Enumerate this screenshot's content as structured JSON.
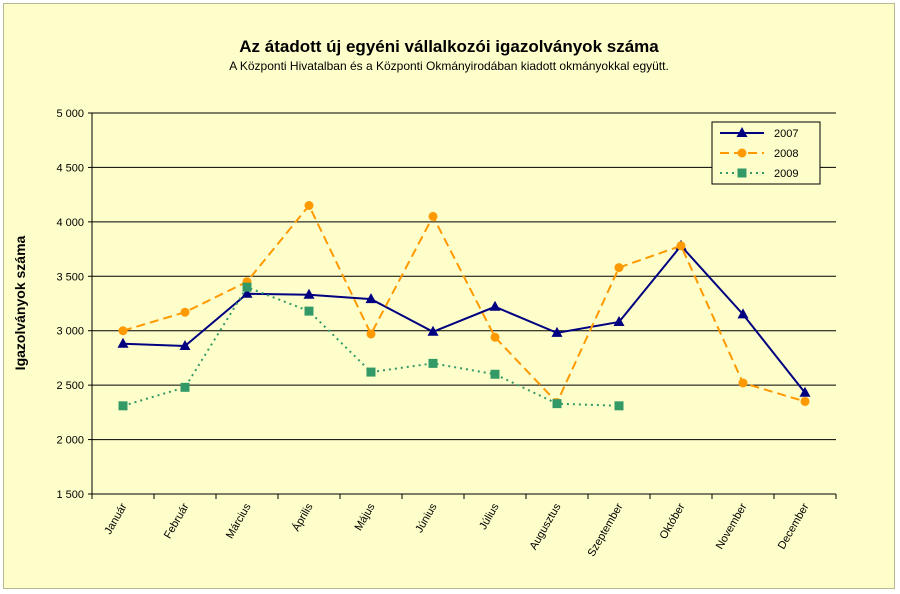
{
  "chart_data": {
    "type": "line",
    "title": "Az átadott új egyéni vállalkozói  igazolványok száma",
    "subtitle": "A Központi Hivatalban és a Központi Okmányirodában kiadott okmányokkal együtt.",
    "xlabel": "",
    "ylabel": "Igazolványok száma",
    "ylim": [
      1500,
      5000
    ],
    "ytick_step": 500,
    "ytick_labels": [
      "1 500",
      "2 000",
      "2 500",
      "3 000",
      "3 500",
      "4 000",
      "4 500",
      "5 000"
    ],
    "grid": true,
    "legend_position": "top-right",
    "categories": [
      "Január",
      "Február",
      "Március",
      "Április",
      "Május",
      "Június",
      "Július",
      "Augusztus",
      "Szeptember",
      "Október",
      "November",
      "December"
    ],
    "series": [
      {
        "name": "2007",
        "color": "#000080",
        "line_style": "solid",
        "marker": "triangle",
        "values": [
          2880,
          2860,
          3340,
          3330,
          3290,
          2990,
          3220,
          2980,
          3080,
          3780,
          3150,
          2430
        ]
      },
      {
        "name": "2008",
        "color": "#ff9900",
        "line_style": "dashed",
        "marker": "circle",
        "values": [
          3000,
          3170,
          3450,
          4150,
          2970,
          4050,
          2940,
          2340,
          3580,
          3780,
          2520,
          2350
        ]
      },
      {
        "name": "2009",
        "color": "#339966",
        "line_style": "dotted",
        "marker": "square",
        "values": [
          2310,
          2480,
          3400,
          3180,
          2620,
          2700,
          2600,
          2330,
          2310,
          null,
          null,
          null
        ]
      }
    ]
  }
}
